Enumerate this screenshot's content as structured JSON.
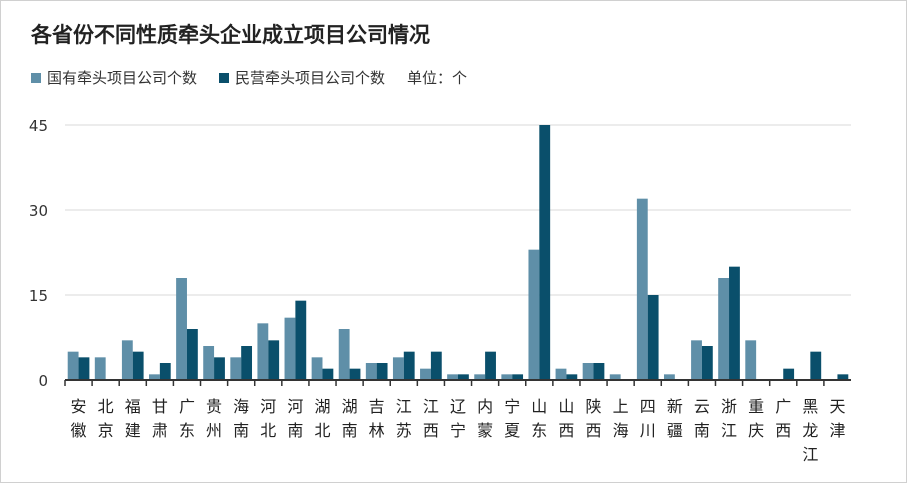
{
  "chart_data": {
    "type": "bar",
    "title": "各省份不同性质牵头企业成立项目公司情况",
    "unit_label": "单位：个",
    "categories": [
      "安徽",
      "北京",
      "福建",
      "甘肃",
      "广东",
      "贵州",
      "海南",
      "河北",
      "河南",
      "湖北",
      "湖南",
      "吉林",
      "江苏",
      "江西",
      "辽宁",
      "内蒙",
      "宁夏",
      "山东",
      "山西",
      "陕西",
      "上海",
      "四川",
      "新疆",
      "云南",
      "浙江",
      "重庆",
      "广西",
      "黑龙江",
      "天津"
    ],
    "series": [
      {
        "name": "国有牵头项目公司个数",
        "color": "#5f8fa8",
        "values": [
          5,
          4,
          7,
          1,
          18,
          6,
          4,
          10,
          11,
          4,
          9,
          3,
          4,
          2,
          1,
          1,
          1,
          23,
          2,
          3,
          1,
          32,
          1,
          7,
          18,
          7,
          0,
          0,
          0
        ]
      },
      {
        "name": "民营牵头项目公司个数",
        "color": "#0a4f6b",
        "values": [
          4,
          0,
          5,
          3,
          9,
          4,
          6,
          7,
          14,
          2,
          2,
          3,
          5,
          5,
          1,
          5,
          1,
          45,
          1,
          3,
          0,
          15,
          0,
          6,
          20,
          0,
          2,
          5,
          1
        ]
      }
    ],
    "yticks": [
      0,
      15,
      30,
      45
    ],
    "ylim": [
      0,
      45
    ],
    "grid": true,
    "legend_position": "top-left"
  }
}
